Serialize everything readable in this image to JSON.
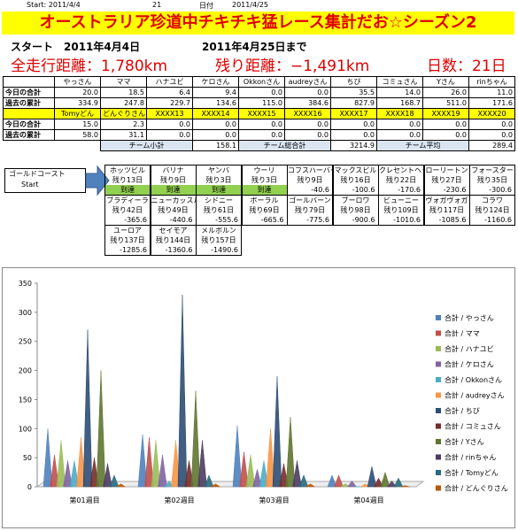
{
  "header": {
    "start": "Start:  2011/4/4",
    "days": "21",
    "date_label": "日付",
    "end_date": "2011/4/25"
  },
  "title": "オーストラリア珍道中チキチキ猛レース集計だお☆シーズン2",
  "start_line": {
    "start": "スタート　2011年4月4日",
    "until": "2011年4月25日まで"
  },
  "stats": {
    "total": "全走行距離：1,780km",
    "remaining": "残り距離：−1,491km",
    "days": "日数：21日"
  },
  "table": {
    "rows": [
      [
        "",
        "やっさん",
        "ママ",
        "ハナユビ",
        "ケロさん",
        "Okkonさん",
        "audreyさん",
        "ちび",
        "コミュさん",
        "Yさん",
        "rinちゃん"
      ],
      [
        "今日の合計",
        "20.0",
        "18.5",
        "6.4",
        "9.4",
        "0.0",
        "0.0",
        "35.5",
        "14.0",
        "26.0",
        "11.0"
      ],
      [
        "過去の累計",
        "334.9",
        "247.8",
        "229.7",
        "134.6",
        "115.0",
        "384.6",
        "827.9",
        "168.7",
        "511.0",
        "171.6"
      ],
      [
        "",
        "Tomyどん",
        "どんぐりさん",
        "XXXX13",
        "XXXX14",
        "XXXX15",
        "XXXX16",
        "XXXX17",
        "XXXX18",
        "XXXX19",
        "XXXX20"
      ],
      [
        "今日の合計",
        "15.0",
        "2.3",
        "0.0",
        "0.0",
        "0.0",
        "0.0",
        "0.0",
        "0.0",
        "0.0",
        "0.0"
      ],
      [
        "過去の累計",
        "58.0",
        "31.1",
        "0.0",
        "0.0",
        "0.0",
        "0.0",
        "0.0",
        "0.0",
        "0.0",
        "0.0"
      ]
    ],
    "team": [
      "チーム小計",
      "158.1",
      "チーム総合計",
      "3214.9",
      "チーム平均",
      "289.4"
    ]
  },
  "course": {
    "start": [
      "ゴールドコースト",
      "Start"
    ],
    "places": [
      [
        "ホッツビル",
        "残り13日",
        "到達"
      ],
      [
        "バリナ",
        "残り9日",
        "到達"
      ],
      [
        "ヤンバ",
        "残り3日",
        "到達"
      ],
      [
        "ウーリ",
        "残り3日",
        "到達"
      ],
      [
        "コフスハーバー",
        "残り9日",
        "-40.6"
      ],
      [
        "マックスビル",
        "残り16日",
        "-100.6"
      ],
      [
        "クレセントヘッド",
        "残り22日",
        "-170.6"
      ],
      [
        "ローリートン",
        "残り27日",
        "-230.6"
      ],
      [
        "フォースター",
        "残り35日",
        "-300.6"
      ],
      [
        "ブラディーラ",
        "残り42日",
        "-365.6"
      ],
      [
        "ニューカッスル",
        "残り49日",
        "-440.6"
      ],
      [
        "シドニー",
        "残り61日",
        "-555.6"
      ],
      [
        "ボーラル",
        "残り69日",
        "-665.6"
      ],
      [
        "ゴールバーン",
        "残り79日",
        "-775.6"
      ],
      [
        "ブーロワ",
        "残り98日",
        "-900.6"
      ],
      [
        "ビューニー",
        "残り109日",
        "-1010.6"
      ],
      [
        "ヴォガヴォガ",
        "残り117日",
        "-1085.6"
      ],
      [
        "コラワ",
        "残り124日",
        "-1160.6"
      ],
      [
        "ユーロア",
        "残り137日",
        "-1285.6"
      ],
      [
        "セイモア",
        "残り144日",
        "-1360.6"
      ],
      [
        "メルボルン",
        "残り157日",
        "-1490.6"
      ]
    ]
  },
  "chart_data": {
    "type": "cone",
    "categories": [
      "第01週目",
      "第02週目",
      "第03週目",
      "第04週目"
    ],
    "ylim": [
      0,
      350
    ],
    "yticks": [
      0,
      50,
      100,
      150,
      200,
      250,
      300,
      350
    ],
    "series": [
      {
        "name": "合計 / やっさん",
        "color": "#4f81bd",
        "values": [
          100,
          90,
          105,
          20
        ]
      },
      {
        "name": "合計 / ママ",
        "color": "#c0504d",
        "values": [
          55,
          85,
          60,
          20
        ]
      },
      {
        "name": "合計 / ハナユビ",
        "color": "#9bbb59",
        "values": [
          80,
          80,
          55,
          5
        ]
      },
      {
        "name": "合計 / ケロさん",
        "color": "#8064a2",
        "values": [
          45,
          55,
          30,
          10
        ]
      },
      {
        "name": "合計 / Okkonさん",
        "color": "#4bacc6",
        "values": [
          45,
          10,
          45,
          0
        ]
      },
      {
        "name": "合計 / audreyさん",
        "color": "#f79646",
        "values": [
          85,
          80,
          100,
          5
        ]
      },
      {
        "name": "合計 / ちび",
        "color": "#2c4d75",
        "values": [
          270,
          330,
          190,
          35
        ]
      },
      {
        "name": "合計 / コミュさん",
        "color": "#772c2a",
        "values": [
          50,
          45,
          40,
          15
        ]
      },
      {
        "name": "合計 / Yさん",
        "color": "#5f7530",
        "values": [
          200,
          165,
          120,
          25
        ]
      },
      {
        "name": "合計 / rinちゃん",
        "color": "#4d3b62",
        "values": [
          40,
          80,
          45,
          10
        ]
      },
      {
        "name": "合計 / Tomyどん",
        "color": "#276a7c",
        "values": [
          20,
          20,
          20,
          15
        ]
      },
      {
        "name": "合計 / どんぐりさん",
        "color": "#b65708",
        "values": [
          5,
          5,
          5,
          2
        ]
      }
    ]
  }
}
